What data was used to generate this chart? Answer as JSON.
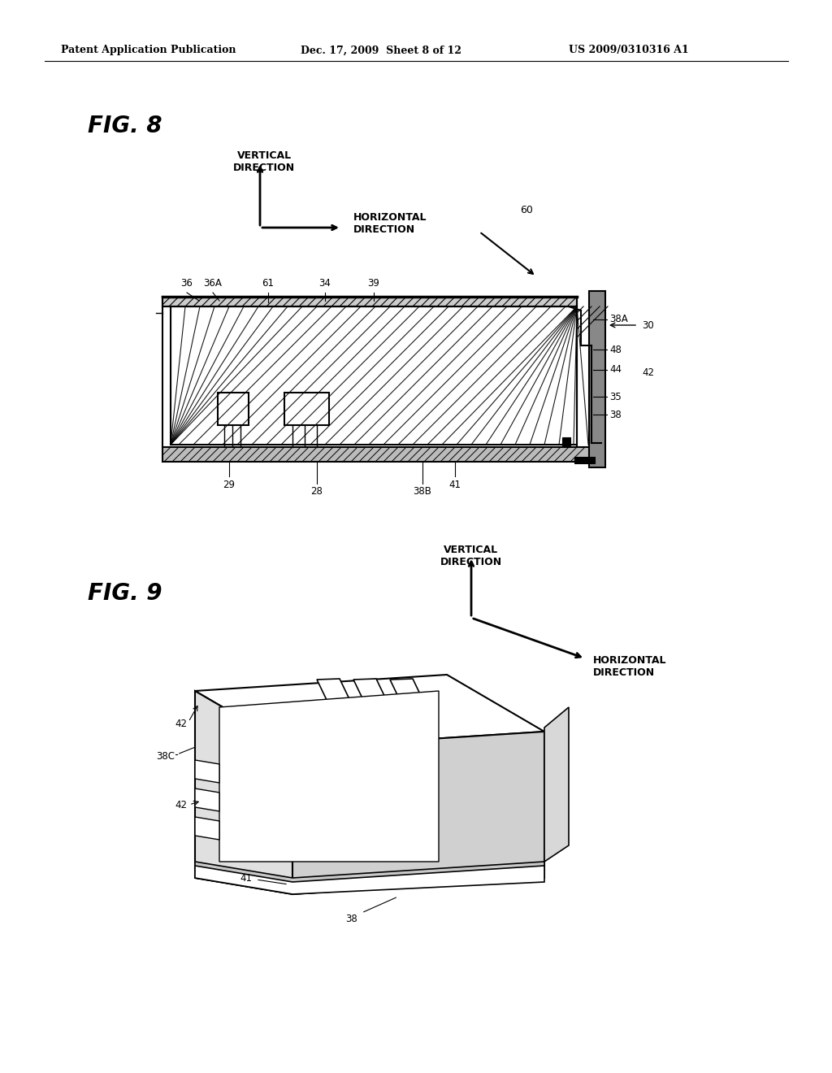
{
  "bg_color": "#ffffff",
  "title_text": "Patent Application Publication",
  "title_date": "Dec. 17, 2009  Sheet 8 of 12",
  "title_patent": "US 2009/0310316 A1",
  "fig8_label": "FIG. 8",
  "fig9_label": "FIG. 9",
  "text_color": "#000000",
  "line_color": "#000000",
  "hatch_color": "#000000"
}
